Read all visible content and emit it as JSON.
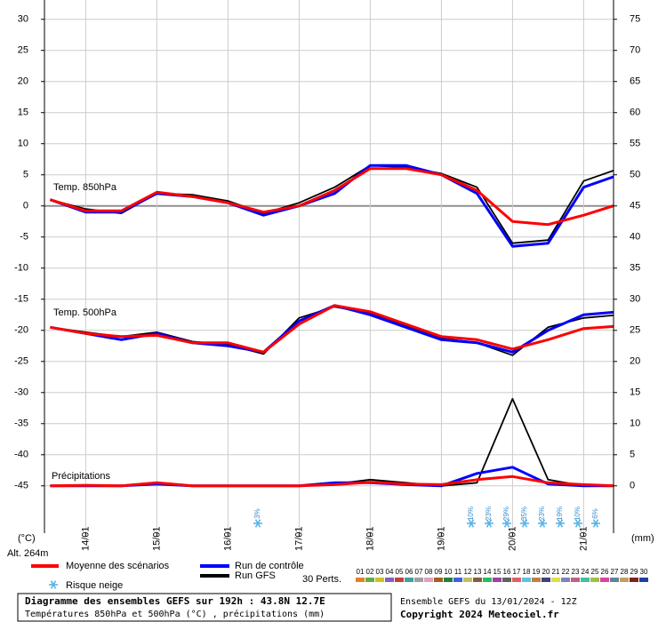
{
  "chart_data": {
    "type": "line",
    "xlim": [
      13.42,
      21.42
    ],
    "xticks": [
      {
        "value": 14,
        "label": "14/01"
      },
      {
        "value": 15,
        "label": "15/01"
      },
      {
        "value": 16,
        "label": "16/01"
      },
      {
        "value": 17,
        "label": "17/01"
      },
      {
        "value": 18,
        "label": "18/01"
      },
      {
        "value": 19,
        "label": "19/01"
      },
      {
        "value": 20,
        "label": "20/01"
      },
      {
        "value": 21,
        "label": "21/01"
      }
    ],
    "ylim": [
      -52.6,
      33.1
    ],
    "yticks": [
      30,
      25,
      20,
      15,
      10,
      5,
      0,
      -5,
      -10,
      -15,
      -20,
      -25,
      -30,
      -35,
      -40,
      -45
    ],
    "y2lim": [
      -7.6,
      78.1
    ],
    "y2ticks": [
      75,
      70,
      65,
      60,
      55,
      50,
      45,
      40,
      35,
      30,
      25,
      20,
      15,
      10,
      5,
      0
    ],
    "grid": true,
    "y_unit": "(°C)",
    "y2_unit": "(mm)",
    "altitude": "Alt. 264m",
    "annotations": [
      "Temp. 850hPa",
      "Temp. 500hPa",
      "Précipitations"
    ],
    "x": [
      13.5,
      14,
      14.5,
      15,
      15.5,
      16,
      16.5,
      17,
      17.5,
      18,
      18.5,
      19,
      19.5,
      20,
      20.5,
      21,
      21.5
    ],
    "series": [
      {
        "name": "Run GFS",
        "color": "#000000",
        "t850": [
          1,
          -0.5,
          -1.2,
          2,
          1.8,
          0.8,
          -1.2,
          0.5,
          3,
          6.5,
          6.2,
          5.2,
          3,
          -6,
          -5.5,
          4,
          6
        ],
        "t500": [
          -19.5,
          -20.3,
          -21,
          -20.3,
          -21.8,
          -22.3,
          -23.8,
          -18,
          -16.2,
          -17.3,
          -19.3,
          -21.3,
          -22,
          -24,
          -19.5,
          -18,
          -17.5
        ],
        "precip": [
          0,
          0,
          0,
          0.5,
          0,
          0,
          0,
          0,
          0.3,
          1,
          0.5,
          0,
          0.5,
          14,
          1,
          0,
          0
        ]
      },
      {
        "name": "Run de contrôle",
        "color": "#0000ff",
        "t850": [
          1,
          -1,
          -1,
          2,
          1.5,
          0.5,
          -1.5,
          0,
          2,
          6.5,
          6.5,
          5,
          2,
          -6.5,
          -6,
          3,
          5
        ],
        "t500": [
          -19.5,
          -20.5,
          -21.5,
          -20.5,
          -22,
          -22.5,
          -23.5,
          -18.5,
          -16,
          -17.5,
          -19.5,
          -21.5,
          -22,
          -23.5,
          -20,
          -17.5,
          -17
        ],
        "precip": [
          0,
          0,
          0,
          0.3,
          0,
          0,
          0,
          0,
          0.5,
          0.5,
          0.2,
          0,
          2,
          3,
          0.3,
          0,
          0
        ]
      },
      {
        "name": "Moyenne des scénarios",
        "color": "#ff0000",
        "t850": [
          1,
          -0.8,
          -0.8,
          2.2,
          1.5,
          0.5,
          -1,
          0,
          2.5,
          6,
          6,
          5,
          2.5,
          -2.5,
          -3,
          -1.5,
          0.3
        ],
        "t500": [
          -19.5,
          -20.5,
          -21,
          -20.8,
          -22,
          -22,
          -23.5,
          -19,
          -16,
          -17,
          -19,
          -21,
          -21.5,
          -23,
          -21.5,
          -19.7,
          -19.3
        ],
        "precip": [
          0,
          0.1,
          0,
          0.5,
          0,
          0,
          0,
          0,
          0.2,
          0.6,
          0.3,
          0.2,
          1,
          1.5,
          0.5,
          0.2,
          0
        ]
      }
    ],
    "snow_risk": {
      "name": "Risque neige",
      "x": [
        16.42,
        19.42,
        19.67,
        19.92,
        20.17,
        20.42,
        20.67,
        20.92,
        21.17
      ],
      "values": [
        3,
        10,
        23,
        29,
        35,
        23,
        19,
        10,
        6
      ],
      "value_labels": [
        "3%",
        "10%",
        "23%",
        "29%",
        "35%",
        "23%",
        "19%",
        "10%",
        "6%"
      ]
    },
    "perturbations": {
      "title": "30 Perts.",
      "names": [
        "01",
        "02",
        "03",
        "04",
        "05",
        "06",
        "07",
        "08",
        "09",
        "10",
        "11",
        "12",
        "13",
        "14",
        "15",
        "16",
        "17",
        "18",
        "19",
        "20",
        "21",
        "22",
        "23",
        "24",
        "25",
        "26",
        "27",
        "28",
        "29",
        "30"
      ],
      "colors": [
        "#e08030",
        "#60b040",
        "#d0c020",
        "#8060c0",
        "#c04040",
        "#40a0a0",
        "#a0a0a0",
        "#e0a0c0",
        "#a06020",
        "#208040",
        "#4060e0",
        "#c0c060",
        "#806040",
        "#20c060",
        "#a040a0",
        "#606060",
        "#e06060",
        "#60c0e0",
        "#c08040",
        "#404080",
        "#e0e040",
        "#8080c0",
        "#c06080",
        "#40c0a0",
        "#a0c040",
        "#e040a0",
        "#6080a0",
        "#c0a060",
        "#802020",
        "#2040a0"
      ]
    },
    "footer": {
      "title": "Diagramme des ensembles GEFS sur 192h : 43.8N 12.7E",
      "subtitle": "Températures 850hPa et 500hPa (°C) , précipitations (mm)",
      "run": "Ensemble GEFS du 13/01/2024 - 12Z",
      "copyright": "Copyright 2024 Meteociel.fr"
    }
  }
}
